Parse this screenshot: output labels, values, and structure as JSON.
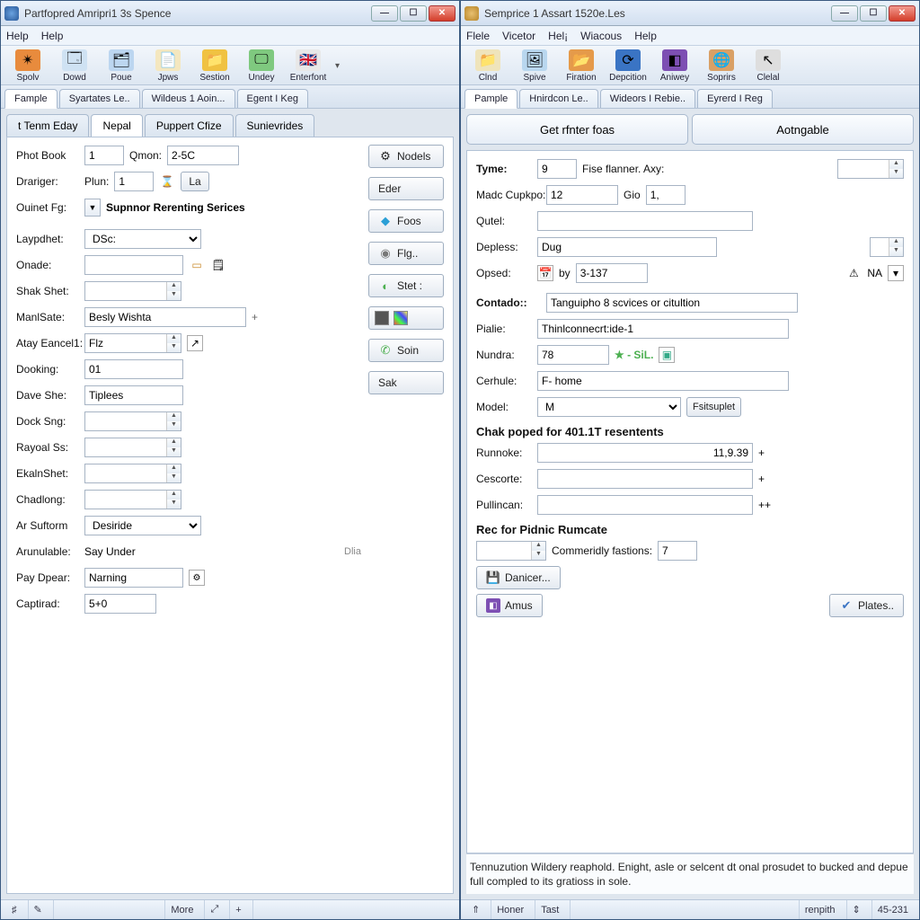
{
  "left": {
    "title": "Partfopred Amripri1 3s Spence",
    "menus": [
      "Help",
      "Help"
    ],
    "toolbar": [
      {
        "label": "Spolv",
        "icon": "✴",
        "bg": "#e88b3d"
      },
      {
        "label": "Dowd",
        "icon": "🗔",
        "bg": "#cfe2f3"
      },
      {
        "label": "Poue",
        "icon": "🗂",
        "bg": "#bcd6f0"
      },
      {
        "label": "Jpws",
        "icon": "📄",
        "bg": "#f4e7bf"
      },
      {
        "label": "Sestion",
        "icon": "📁",
        "bg": "#f0c242"
      },
      {
        "label": "Undey",
        "icon": "🖵",
        "bg": "#7fc97f"
      },
      {
        "label": "Enterfont",
        "icon": "🇬🇧",
        "bg": "#e8e8e8"
      }
    ],
    "tabs": [
      {
        "label": "Fample",
        "active": true
      },
      {
        "label": "Syartates Le..",
        "active": false
      },
      {
        "label": "Wildeus 1 Aoin...",
        "active": false
      },
      {
        "label": "Egent I Keg",
        "active": false
      }
    ],
    "inner_tabs": [
      {
        "label": "t Tenm Eday",
        "active": false
      },
      {
        "label": "Nepal",
        "active": true
      },
      {
        "label": "Puppert Cfize",
        "active": false
      },
      {
        "label": "Sunievrides",
        "active": false
      }
    ],
    "fields": {
      "phot_book_lbl": "Phot Book",
      "phot_book_val": "1",
      "qmon_lbl": "Qmon:",
      "qmon_val": "2-5C",
      "drariger_lbl": "Drariger:",
      "plun_lbl": "Plun:",
      "plun_val": "1",
      "la_btn": "La",
      "ouinet_lbl": "Ouinet Fg:",
      "ouinet_val": "Supnnor Rerenting Serices",
      "laypdhet_lbl": "Laypdhet:",
      "laypdhet_val": "DSc:",
      "onade_lbl": "Onade:",
      "shak_lbl": "Shak Shet:",
      "mansate_lbl": "ManlSate:",
      "mansate_val": "Besly Wishta",
      "atay_lbl": "Atay Eancel1:",
      "atay_val": "Flz",
      "dooking_lbl": "Dooking:",
      "dooking_val": "01",
      "dave_lbl": "Dave She:",
      "dave_val": "Tiplees",
      "dock_lbl": "Dock Sng:",
      "rayoal_lbl": "Rayoal Ss:",
      "ekain_lbl": "EkalnShet:",
      "chadong_lbl": "Chadlong:",
      "arsuf_lbl": "Ar Suftorm",
      "arsuf_val": "Desiride",
      "annul_lbl": "Arunulable:",
      "annul_val": "Say Under",
      "dlia": "Dlia",
      "pay_lbl": "Pay Dpear:",
      "pay_val": "Narning",
      "cap_lbl": "Captirad:",
      "cap_val": "5+0"
    },
    "sidebtns": {
      "nodels": "Nodels",
      "eder": "Eder",
      "foos": "Foos",
      "fig": "Flg..",
      "stet": "Stet  :",
      "soin": "Soin",
      "sak": "Sak"
    },
    "status": {
      "more": "More",
      "plus": "+"
    }
  },
  "right": {
    "title": "Semprice 1 Assart 1520e.Les",
    "menus": [
      "Flele",
      "Vicetor",
      "Hel¡",
      "Wiacous",
      "Help"
    ],
    "toolbar": [
      {
        "label": "Clnd",
        "icon": "📁",
        "bg": "#efe4bb"
      },
      {
        "label": "Spive",
        "icon": "🖼",
        "bg": "#b9d7ef"
      },
      {
        "label": "Firation",
        "icon": "📂",
        "bg": "#e59a4a"
      },
      {
        "label": "Depcition",
        "icon": "⟳",
        "bg": "#3a74c4"
      },
      {
        "label": "Aniwey",
        "icon": "◧",
        "bg": "#7d4fb3"
      },
      {
        "label": "Soprirs",
        "icon": "🌐",
        "bg": "#d9a066"
      },
      {
        "label": "Clelal",
        "icon": "↖",
        "bg": "#dedede"
      }
    ],
    "tabs": [
      {
        "label": "Pample",
        "active": true
      },
      {
        "label": "Hnirdcon Le..",
        "active": false
      },
      {
        "label": "Wideors I Rebie..",
        "active": false
      },
      {
        "label": "Eyrerd I Reg",
        "active": false
      }
    ],
    "bigtabs": {
      "left": "Get rfnter foas",
      "right": "Aotngable"
    },
    "fields": {
      "tyme_lbl": "Tyme:",
      "tyme_val": "9",
      "fise_lbl": "Fise flanner.  Axy:",
      "madc_lbl": "Madc Cupkpo:",
      "madc_val": "12",
      "gio_lbl": "Gio",
      "gio_val": "1,",
      "qutel_lbl": "Qutel:",
      "depless_lbl": "Depless:",
      "depless_val": "Dug",
      "opsed_lbl": "Opsed:",
      "opsed_by": "by",
      "opsed_val": "3-137",
      "opsed_na": "NA",
      "contado_lbl": "Contado::",
      "contado_val": "Tanguipho 8 scvices or citultion",
      "palie_lbl": "Pialie:",
      "palie_val": "Thinlconnecrt:ide-1",
      "nundra_lbl": "Nundra:",
      "nundra_val": "78",
      "nundra_star": "★ - SiL.",
      "cerhule_lbl": "Cerhule:",
      "cerhule_val": "F- home",
      "model_lbl": "Model:",
      "model_val": "M",
      "fsitsup": "Fsitsuplet",
      "sec1": "Chak poped for 401.1T resentents",
      "runnoke_lbl": "Runnoke:",
      "runnoke_val": "11,9.39",
      "cescorte_lbl": "Cescorte:",
      "pullincan_lbl": "Pullincan:",
      "sec2": "Rec for Pidnic Rumcate",
      "commerly_lbl": "Commeridly fastions:",
      "commerly_val": "7",
      "danicer": "Danicer...",
      "amus": "Amus",
      "plates": "Plates.."
    },
    "footnote": "Tennuzution Wildery reaphold.  Enight, asle or selcent dt onal prosudet to bucked and depue full compled to its gratioss in sole.",
    "status": {
      "home": "Honer",
      "tast": "Tast",
      "renpith": "renpith",
      "right": "45-231"
    }
  },
  "colors": {
    "accent": "#3a74c4",
    "green": "#4caf50",
    "gem": "#2a9fd6"
  }
}
